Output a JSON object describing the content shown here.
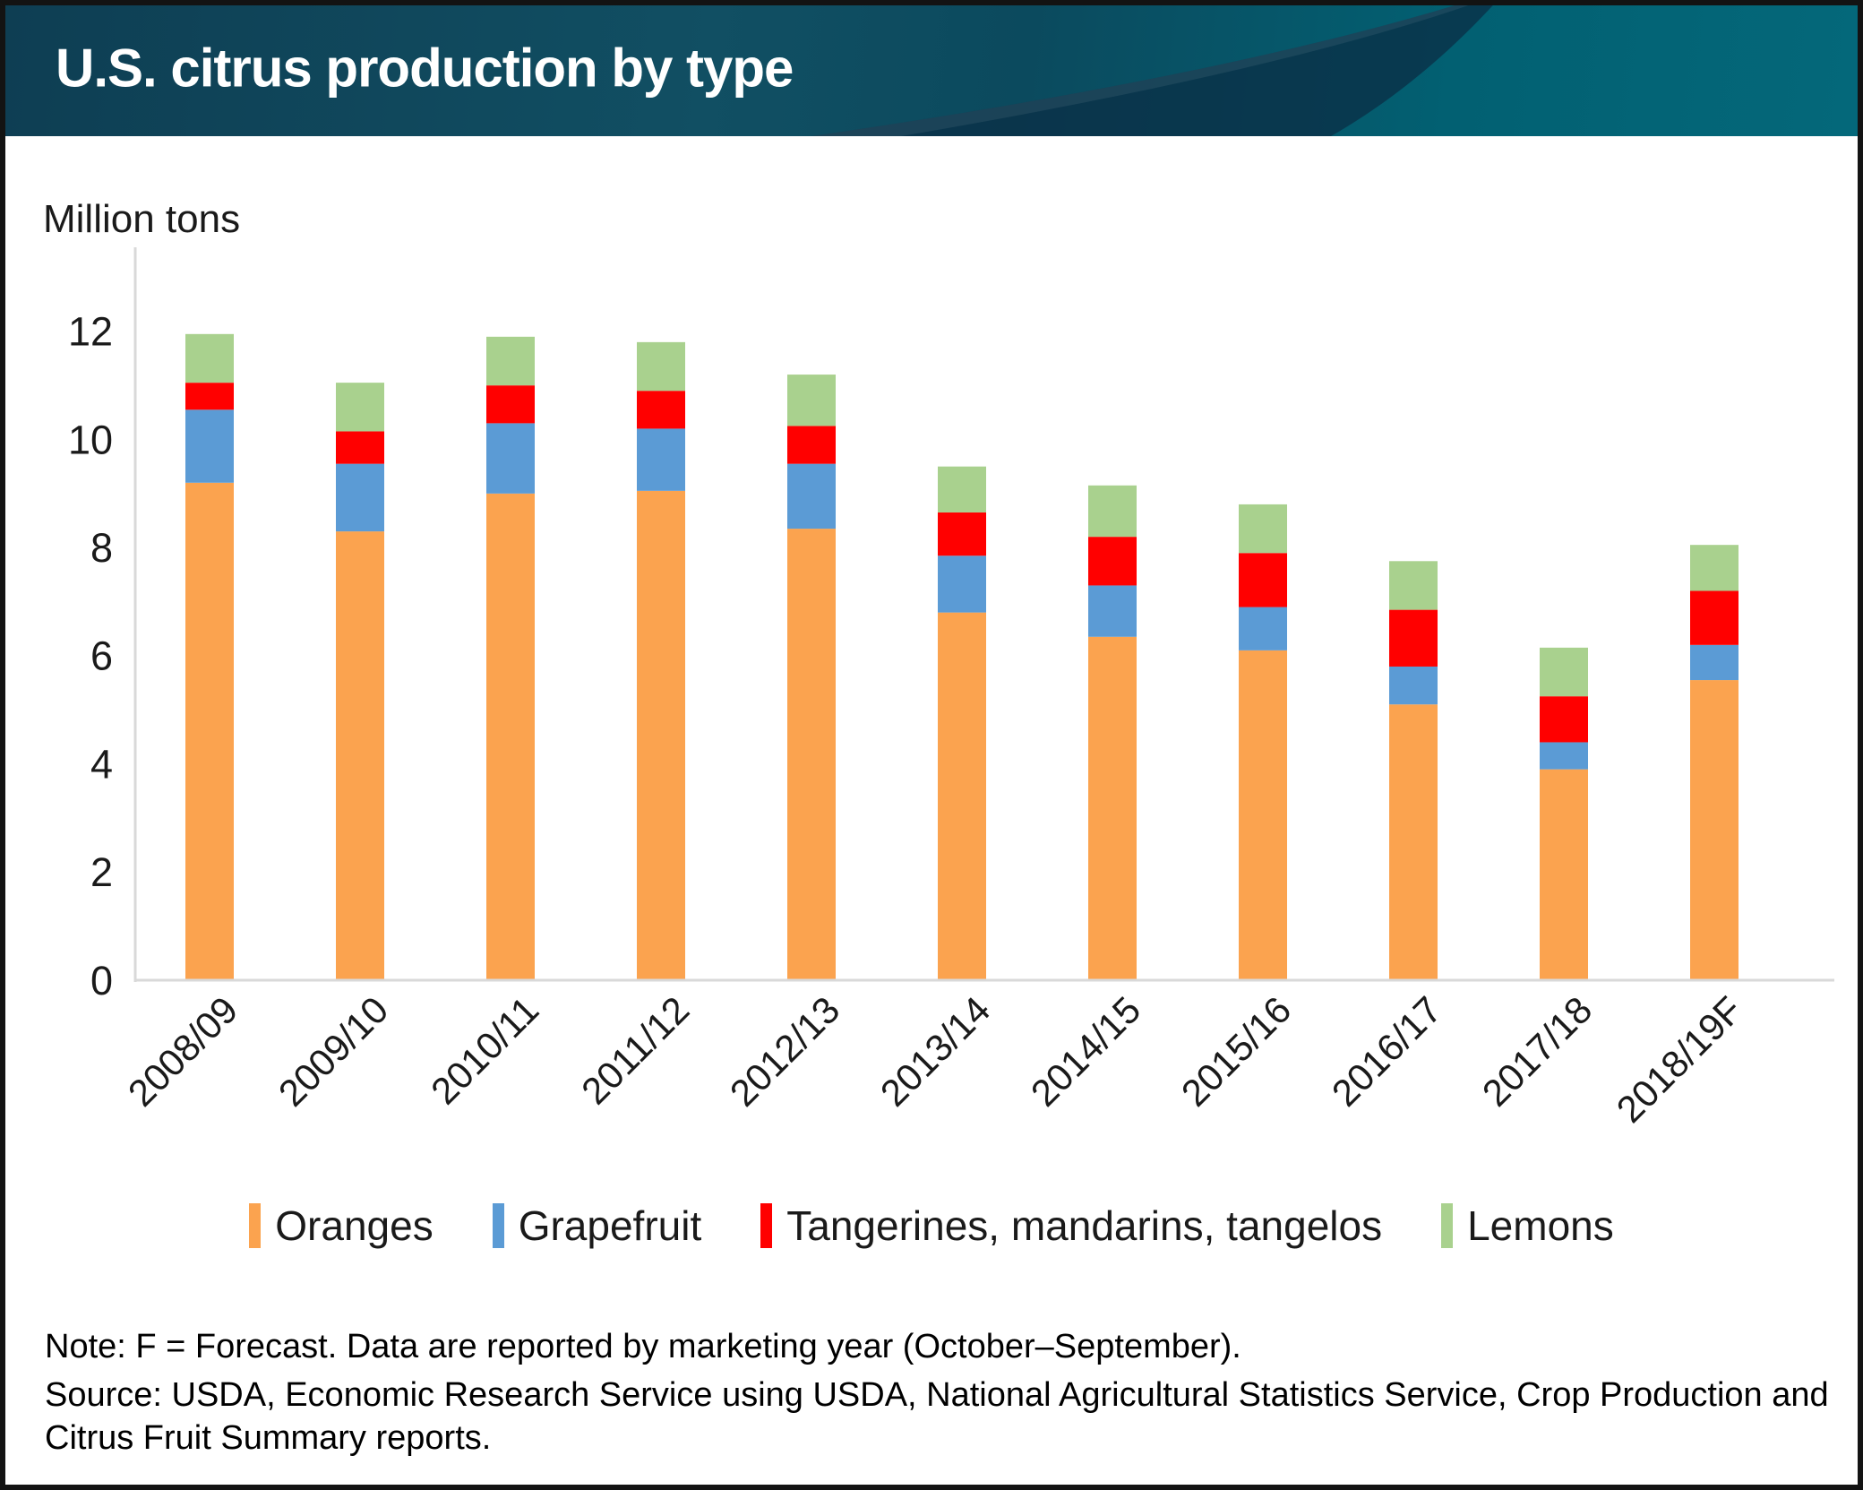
{
  "header": {
    "title": "U.S. citrus production by type"
  },
  "chart_data": {
    "type": "bar",
    "stacked": true,
    "title": "U.S. citrus production by type",
    "ylabel": "Million tons",
    "xlabel": "",
    "ylim": [
      0,
      12
    ],
    "yticks": [
      0,
      2,
      4,
      6,
      8,
      10,
      12
    ],
    "grid": false,
    "legend_position": "bottom",
    "categories": [
      "2008/09",
      "2009/10",
      "2010/11",
      "2011/12",
      "2012/13",
      "2013/14",
      "2014/15",
      "2015/16",
      "2016/17",
      "2017/18",
      "2018/19F"
    ],
    "series": [
      {
        "name": "Oranges",
        "color": "#FBA34F",
        "values": [
          9.2,
          8.3,
          9.0,
          9.05,
          8.35,
          6.8,
          6.35,
          6.1,
          5.1,
          3.9,
          5.55
        ]
      },
      {
        "name": "Grapefruit",
        "color": "#5B9BD5",
        "values": [
          1.35,
          1.25,
          1.3,
          1.15,
          1.2,
          1.05,
          0.95,
          0.8,
          0.7,
          0.5,
          0.65
        ]
      },
      {
        "name": "Tangerines, mandarins, tangelos",
        "color": "#FF0000",
        "values": [
          0.5,
          0.6,
          0.7,
          0.7,
          0.7,
          0.8,
          0.9,
          1.0,
          1.05,
          0.85,
          1.0
        ]
      },
      {
        "name": "Lemons",
        "color": "#A9D18E",
        "values": [
          0.9,
          0.9,
          0.9,
          0.9,
          0.95,
          0.85,
          0.95,
          0.9,
          0.9,
          0.9,
          0.85
        ]
      }
    ]
  },
  "notes": {
    "note": "Note: F = Forecast. Data are reported by marketing year (October–September).",
    "source_line1": "Source: USDA, Economic Research Service using USDA, National Agricultural Statistics Service, Crop Production and",
    "source_line2": "Citrus Fruit Summary reports."
  },
  "colors": {
    "header_dark": "#0e3e53",
    "header_teal": "#04687a",
    "swoosh_dark": "#0a3046",
    "axis_line": "#d9d9d9",
    "text": "#1a1a1a"
  }
}
